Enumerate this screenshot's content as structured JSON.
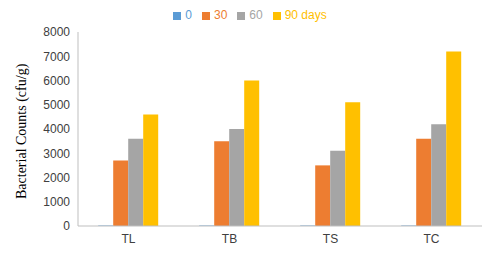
{
  "chart_data": {
    "type": "bar",
    "categories": [
      "TL",
      "TB",
      "TS",
      "TC"
    ],
    "series": [
      {
        "name": "0",
        "color": "#5b9bd5",
        "values": [
          20,
          20,
          20,
          20
        ]
      },
      {
        "name": "30",
        "color": "#ed7d31",
        "values": [
          2700,
          3500,
          2500,
          3600
        ]
      },
      {
        "name": "60",
        "color": "#a5a5a5",
        "values": [
          3600,
          4000,
          3100,
          4200
        ]
      },
      {
        "name": "90 days",
        "color": "#ffc000",
        "values": [
          4600,
          6000,
          5100,
          7200
        ]
      }
    ],
    "y_label": "Bacterial Counts (cfu/g)",
    "ylim": [
      0,
      8000
    ],
    "yticks": [
      0,
      1000,
      2000,
      3000,
      4000,
      5000,
      6000,
      7000,
      8000
    ],
    "grid": false,
    "legend": "top"
  }
}
